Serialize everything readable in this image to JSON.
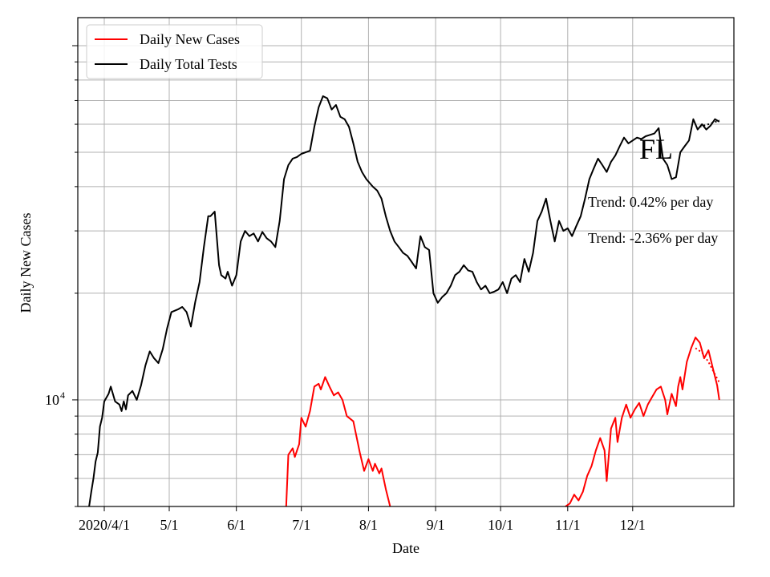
{
  "chart_data": {
    "type": "line",
    "state_label": "FL",
    "xlabel": "Date",
    "ylabel": "Daily New Cases",
    "yscale": "log",
    "ylim": [
      5000,
      120000
    ],
    "grid": true,
    "legend_position": "top-left",
    "x_tick_labels": [
      "2020/4/1",
      "5/1",
      "6/1",
      "7/1",
      "8/1",
      "9/1",
      "10/1",
      "11/1",
      "12/1"
    ],
    "y_tick_labels": [
      {
        "base": "10",
        "exp": "4"
      }
    ],
    "annotations": [
      "Trend: 0.42% per day",
      "Trend: -2.36% per day"
    ],
    "series": [
      {
        "name": "Daily New Cases",
        "color": "#ff0000",
        "points": [
          [
            "2020-06-24",
            5000
          ],
          [
            "2020-06-25",
            7000
          ],
          [
            "2020-06-27",
            7300
          ],
          [
            "2020-06-28",
            6900
          ],
          [
            "2020-06-30",
            7500
          ],
          [
            "2020-07-01",
            8900
          ],
          [
            "2020-07-03",
            8400
          ],
          [
            "2020-07-05",
            9300
          ],
          [
            "2020-07-07",
            10900
          ],
          [
            "2020-07-09",
            11100
          ],
          [
            "2020-07-10",
            10700
          ],
          [
            "2020-07-12",
            11600
          ],
          [
            "2020-07-14",
            10900
          ],
          [
            "2020-07-16",
            10300
          ],
          [
            "2020-07-18",
            10500
          ],
          [
            "2020-07-20",
            10000
          ],
          [
            "2020-07-22",
            9000
          ],
          [
            "2020-07-25",
            8700
          ],
          [
            "2020-07-28",
            7100
          ],
          [
            "2020-07-30",
            6300
          ],
          [
            "2020-08-01",
            6800
          ],
          [
            "2020-08-03",
            6300
          ],
          [
            "2020-08-04",
            6600
          ],
          [
            "2020-08-06",
            6200
          ],
          [
            "2020-08-07",
            6400
          ],
          [
            "2020-08-09",
            5600
          ],
          [
            "2020-08-11",
            5000
          ],
          null,
          [
            "2020-10-31",
            5000
          ],
          [
            "2020-11-02",
            5100
          ],
          [
            "2020-11-04",
            5400
          ],
          [
            "2020-11-06",
            5200
          ],
          [
            "2020-11-08",
            5500
          ],
          [
            "2020-11-10",
            6100
          ],
          [
            "2020-11-12",
            6500
          ],
          [
            "2020-11-14",
            7200
          ],
          [
            "2020-11-16",
            7800
          ],
          [
            "2020-11-18",
            7200
          ],
          [
            "2020-11-19",
            5900
          ],
          [
            "2020-11-21",
            8300
          ],
          [
            "2020-11-23",
            8900
          ],
          [
            "2020-11-24",
            7600
          ],
          [
            "2020-11-26",
            8900
          ],
          [
            "2020-11-28",
            9700
          ],
          [
            "2020-11-30",
            8900
          ],
          [
            "2020-12-02",
            9400
          ],
          [
            "2020-12-04",
            9800
          ],
          [
            "2020-12-06",
            9000
          ],
          [
            "2020-12-08",
            9700
          ],
          [
            "2020-12-10",
            10200
          ],
          [
            "2020-12-12",
            10700
          ],
          [
            "2020-12-14",
            10900
          ],
          [
            "2020-12-16",
            10000
          ],
          [
            "2020-12-17",
            9100
          ],
          [
            "2020-12-19",
            10400
          ],
          [
            "2020-12-21",
            9600
          ],
          [
            "2020-12-22",
            10900
          ],
          [
            "2020-12-23",
            11600
          ],
          [
            "2020-12-24",
            10700
          ],
          [
            "2020-12-26",
            12800
          ],
          [
            "2020-12-28",
            14000
          ],
          [
            "2020-12-30",
            15000
          ],
          [
            "2021-01-01",
            14500
          ],
          [
            "2021-01-03",
            13100
          ],
          [
            "2021-01-05",
            13800
          ],
          [
            "2021-01-07",
            12300
          ],
          [
            "2021-01-09",
            11000
          ],
          [
            "2021-01-10",
            10000
          ]
        ]
      },
      {
        "name": "Daily Total Tests",
        "color": "#000000",
        "points": [
          [
            "2020-03-25",
            5000
          ],
          [
            "2020-03-26",
            5500
          ],
          [
            "2020-03-27",
            6000
          ],
          [
            "2020-03-28",
            6700
          ],
          [
            "2020-03-29",
            7100
          ],
          [
            "2020-03-30",
            8400
          ],
          [
            "2020-03-31",
            8900
          ],
          [
            "2020-04-01",
            9900
          ],
          [
            "2020-04-03",
            10400
          ],
          [
            "2020-04-04",
            10900
          ],
          [
            "2020-04-06",
            9900
          ],
          [
            "2020-04-08",
            9700
          ],
          [
            "2020-04-09",
            9300
          ],
          [
            "2020-04-10",
            9900
          ],
          [
            "2020-04-11",
            9400
          ],
          [
            "2020-04-12",
            10300
          ],
          [
            "2020-04-14",
            10600
          ],
          [
            "2020-04-16",
            10000
          ],
          [
            "2020-04-18",
            11000
          ],
          [
            "2020-04-20",
            12500
          ],
          [
            "2020-04-22",
            13700
          ],
          [
            "2020-04-24",
            13100
          ],
          [
            "2020-04-26",
            12700
          ],
          [
            "2020-04-28",
            13900
          ],
          [
            "2020-04-30",
            15900
          ],
          [
            "2020-05-02",
            17700
          ],
          [
            "2020-05-05",
            18000
          ],
          [
            "2020-05-07",
            18300
          ],
          [
            "2020-05-09",
            17700
          ],
          [
            "2020-05-11",
            16100
          ],
          [
            "2020-05-13",
            18900
          ],
          [
            "2020-05-15",
            21500
          ],
          [
            "2020-05-17",
            27000
          ],
          [
            "2020-05-19",
            33000
          ],
          [
            "2020-05-20",
            33000
          ],
          [
            "2020-05-22",
            34000
          ],
          [
            "2020-05-24",
            24000
          ],
          [
            "2020-05-25",
            22500
          ],
          [
            "2020-05-27",
            22000
          ],
          [
            "2020-05-28",
            23000
          ],
          [
            "2020-05-30",
            21000
          ],
          [
            "2020-06-01",
            22500
          ],
          [
            "2020-06-03",
            28000
          ],
          [
            "2020-06-05",
            30000
          ],
          [
            "2020-06-07",
            29000
          ],
          [
            "2020-06-09",
            29500
          ],
          [
            "2020-06-11",
            28000
          ],
          [
            "2020-06-13",
            29800
          ],
          [
            "2020-06-15",
            28600
          ],
          [
            "2020-06-17",
            28000
          ],
          [
            "2020-06-19",
            27000
          ],
          [
            "2020-06-21",
            32000
          ],
          [
            "2020-06-23",
            42000
          ],
          [
            "2020-06-25",
            46000
          ],
          [
            "2020-06-27",
            48000
          ],
          [
            "2020-06-29",
            48500
          ],
          [
            "2020-07-01",
            49500
          ],
          [
            "2020-07-03",
            50000
          ],
          [
            "2020-07-05",
            50500
          ],
          [
            "2020-07-07",
            59000
          ],
          [
            "2020-07-09",
            67000
          ],
          [
            "2020-07-11",
            72000
          ],
          [
            "2020-07-13",
            71000
          ],
          [
            "2020-07-15",
            66000
          ],
          [
            "2020-07-17",
            68000
          ],
          [
            "2020-07-19",
            63000
          ],
          [
            "2020-07-21",
            62000
          ],
          [
            "2020-07-23",
            59000
          ],
          [
            "2020-07-25",
            53000
          ],
          [
            "2020-07-27",
            47000
          ],
          [
            "2020-07-29",
            44000
          ],
          [
            "2020-07-31",
            42000
          ],
          [
            "2020-08-03",
            40000
          ],
          [
            "2020-08-05",
            39000
          ],
          [
            "2020-08-07",
            37000
          ],
          [
            "2020-08-09",
            33000
          ],
          [
            "2020-08-11",
            30000
          ],
          [
            "2020-08-13",
            28000
          ],
          [
            "2020-08-15",
            27000
          ],
          [
            "2020-08-17",
            26000
          ],
          [
            "2020-08-19",
            25500
          ],
          [
            "2020-08-21",
            24500
          ],
          [
            "2020-08-23",
            23500
          ],
          [
            "2020-08-25",
            29000
          ],
          [
            "2020-08-27",
            27000
          ],
          [
            "2020-08-29",
            26500
          ],
          [
            "2020-08-31",
            20000
          ],
          [
            "2020-09-02",
            18800
          ],
          [
            "2020-09-04",
            19500
          ],
          [
            "2020-09-06",
            20000
          ],
          [
            "2020-09-08",
            21000
          ],
          [
            "2020-09-10",
            22500
          ],
          [
            "2020-09-12",
            23000
          ],
          [
            "2020-09-14",
            24000
          ],
          [
            "2020-09-16",
            23200
          ],
          [
            "2020-09-18",
            23000
          ],
          [
            "2020-09-20",
            21500
          ],
          [
            "2020-09-22",
            20500
          ],
          [
            "2020-09-24",
            21000
          ],
          [
            "2020-09-26",
            20000
          ],
          [
            "2020-09-28",
            20200
          ],
          [
            "2020-09-30",
            20500
          ],
          [
            "2020-10-02",
            21500
          ],
          [
            "2020-10-04",
            20000
          ],
          [
            "2020-10-06",
            22000
          ],
          [
            "2020-10-08",
            22500
          ],
          [
            "2020-10-10",
            21500
          ],
          [
            "2020-10-12",
            25000
          ],
          [
            "2020-10-14",
            23000
          ],
          [
            "2020-10-16",
            26000
          ],
          [
            "2020-10-18",
            32000
          ],
          [
            "2020-10-20",
            34000
          ],
          [
            "2020-10-22",
            37000
          ],
          [
            "2020-10-24",
            32000
          ],
          [
            "2020-10-26",
            28000
          ],
          [
            "2020-10-28",
            32000
          ],
          [
            "2020-10-30",
            30000
          ],
          [
            "2020-11-01",
            30500
          ],
          [
            "2020-11-03",
            29000
          ],
          [
            "2020-11-05",
            31000
          ],
          [
            "2020-11-07",
            33000
          ],
          [
            "2020-11-09",
            37000
          ],
          [
            "2020-11-11",
            42000
          ],
          [
            "2020-11-13",
            45000
          ],
          [
            "2020-11-15",
            48000
          ],
          [
            "2020-11-17",
            46000
          ],
          [
            "2020-11-19",
            44000
          ],
          [
            "2020-11-21",
            47000
          ],
          [
            "2020-11-23",
            49000
          ],
          [
            "2020-11-25",
            52000
          ],
          [
            "2020-11-27",
            55000
          ],
          [
            "2020-11-29",
            53000
          ],
          [
            "2020-12-01",
            54000
          ],
          [
            "2020-12-03",
            55000
          ],
          [
            "2020-12-05",
            54500
          ],
          [
            "2020-12-07",
            55500
          ],
          [
            "2020-12-09",
            56000
          ],
          [
            "2020-12-11",
            56500
          ],
          [
            "2020-12-13",
            58500
          ],
          [
            "2020-12-15",
            48000
          ],
          [
            "2020-12-17",
            46000
          ],
          [
            "2020-12-19",
            42000
          ],
          [
            "2020-12-21",
            42500
          ],
          [
            "2020-12-23",
            50000
          ],
          [
            "2020-12-25",
            52000
          ],
          [
            "2020-12-27",
            54000
          ],
          [
            "2020-12-29",
            62000
          ],
          [
            "2020-12-31",
            58000
          ],
          [
            "2021-01-02",
            60000
          ],
          [
            "2021-01-04",
            58000
          ],
          [
            "2021-01-06",
            59500
          ],
          [
            "2021-01-08",
            62000
          ],
          [
            "2021-01-10",
            61000
          ]
        ]
      },
      {
        "name": "",
        "color": "#ff0000",
        "dash": "2,3",
        "points": [
          [
            "2020-12-30",
            14000
          ],
          [
            "2021-01-02",
            13600
          ],
          [
            "2021-01-05",
            12800
          ],
          [
            "2021-01-08",
            11800
          ],
          [
            "2021-01-10",
            11200
          ]
        ]
      },
      {
        "name": "",
        "color": "#000000",
        "dash": "2,3",
        "points": [
          [
            "2021-01-01",
            59000
          ],
          [
            "2021-01-05",
            60000
          ],
          [
            "2021-01-10",
            61500
          ]
        ]
      }
    ]
  }
}
